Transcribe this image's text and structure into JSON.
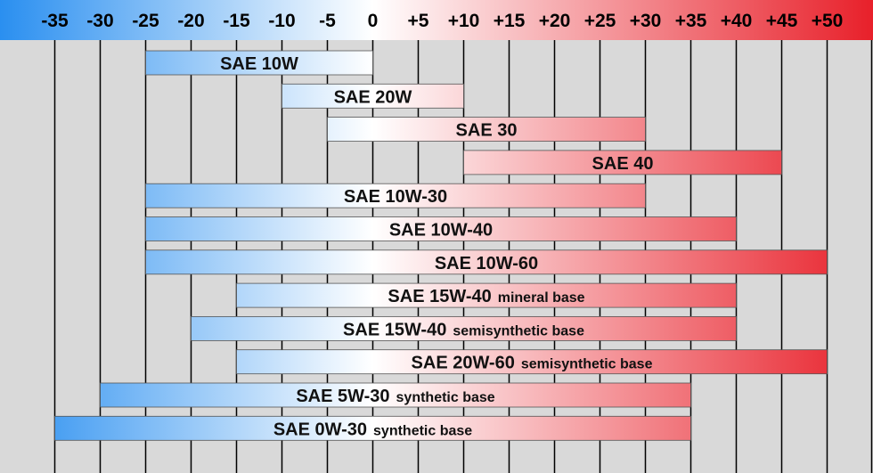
{
  "chart_data": {
    "type": "bar",
    "orientation": "horizontal-range",
    "title": "",
    "xlabel": "",
    "ylabel": "",
    "xlim": [
      -40,
      55
    ],
    "ticks": [
      -35,
      -30,
      -25,
      -20,
      -15,
      -10,
      -5,
      0,
      5,
      10,
      15,
      20,
      25,
      30,
      35,
      40,
      45,
      50
    ],
    "tick_labels": [
      "-35",
      "-30",
      "-25",
      "-20",
      "-15",
      "-10",
      "-5",
      "0",
      "+5",
      "+10",
      "+15",
      "+20",
      "+25",
      "+30",
      "+35",
      "+40",
      "+45",
      "+50"
    ],
    "grid": true,
    "colors": {
      "cold": "#2a8ff0",
      "neutral": "#ffffff",
      "hot": "#e8202a",
      "background": "#d9d9d9",
      "gridline": "#000000"
    },
    "ranges": [
      {
        "name": "SAE 10W",
        "note": "",
        "min": -25,
        "max": 0
      },
      {
        "name": "SAE 20W",
        "note": "",
        "min": -10,
        "max": 10
      },
      {
        "name": "SAE 30",
        "note": "",
        "min": -5,
        "max": 30
      },
      {
        "name": "SAE 40",
        "note": "",
        "min": 10,
        "max": 45
      },
      {
        "name": "SAE 10W-30",
        "note": "",
        "min": -25,
        "max": 30
      },
      {
        "name": "SAE 10W-40",
        "note": "",
        "min": -25,
        "max": 40
      },
      {
        "name": "SAE 10W-60",
        "note": "",
        "min": -25,
        "max": 50
      },
      {
        "name": "SAE 15W-40",
        "note": "mineral base",
        "min": -15,
        "max": 40
      },
      {
        "name": "SAE 15W-40",
        "note": "semisynthetic base",
        "min": -20,
        "max": 40
      },
      {
        "name": "SAE 20W-60",
        "note": "semisynthetic base",
        "min": -15,
        "max": 50
      },
      {
        "name": "SAE 5W-30",
        "note": "synthetic base",
        "min": -30,
        "max": 35
      },
      {
        "name": "SAE 0W-30",
        "note": "synthetic base",
        "min": -35,
        "max": 35
      }
    ]
  }
}
